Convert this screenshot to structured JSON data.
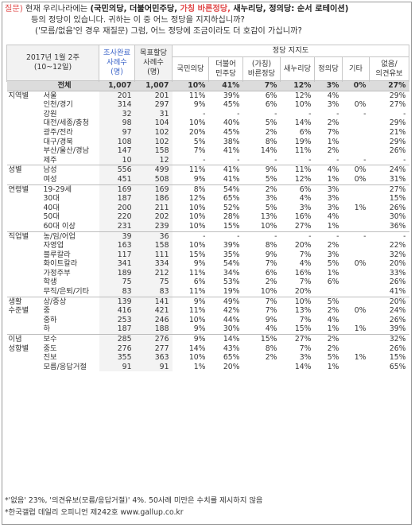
{
  "question": {
    "label": "질문)",
    "line1_a": "현재 우리나라에는",
    "line1_b": "(국민의당, 더불어민주당,",
    "line1_hl": "가칭 바른정당,",
    "line1_c": "새누리당, 정의당: 순서 로테이션)",
    "line2": "등의 정당이 있습니다. 귀하는 이 중 어느 정당을 지지하십니까?",
    "line3": "('모름/없음'인 경우 재질문) 그럼, 어느 정당에 조금이라도 더 호감이 가십니까?"
  },
  "header": {
    "period": "2017년 1월 2주",
    "period2": "(10~12일)",
    "survey_cases": [
      "조사완료",
      "사례수",
      "(명)"
    ],
    "target_cases": [
      "목표할당",
      "사례수",
      "(명)"
    ],
    "party_support": "정당 지지도",
    "parties": [
      [
        "국민의당"
      ],
      [
        "더불어",
        "민주당"
      ],
      [
        "(가칭)",
        "바른정당"
      ],
      [
        "새누리당"
      ],
      [
        "정의당"
      ],
      [
        "기타"
      ],
      [
        "없음/",
        "의견유보"
      ]
    ]
  },
  "rows": [
    {
      "g": "",
      "s": "전체",
      "cells": [
        "1,007",
        "1,007",
        "10%",
        "41%",
        "7%",
        "12%",
        "3%",
        "0%",
        "27%"
      ],
      "total": true
    },
    {
      "g": "지역별",
      "s": "서울",
      "cells": [
        "201",
        "201",
        "11%",
        "39%",
        "6%",
        "12%",
        "4%",
        "",
        "29%"
      ],
      "start": true
    },
    {
      "g": "",
      "s": "인천/경기",
      "cells": [
        "314",
        "297",
        "9%",
        "45%",
        "6%",
        "10%",
        "3%",
        "0%",
        "27%"
      ]
    },
    {
      "g": "",
      "s": "강원",
      "cells": [
        "32",
        "31",
        "-",
        "-",
        "-",
        "-",
        "-",
        "-",
        "-"
      ]
    },
    {
      "g": "",
      "s": "대전/세종/충청",
      "cells": [
        "98",
        "104",
        "10%",
        "40%",
        "5%",
        "14%",
        "2%",
        "",
        "29%"
      ]
    },
    {
      "g": "",
      "s": "광주/전라",
      "cells": [
        "97",
        "102",
        "20%",
        "45%",
        "2%",
        "6%",
        "7%",
        "",
        "21%"
      ]
    },
    {
      "g": "",
      "s": "대구/경북",
      "cells": [
        "108",
        "102",
        "5%",
        "38%",
        "8%",
        "19%",
        "1%",
        "",
        "29%"
      ]
    },
    {
      "g": "",
      "s": "부산/울산/경남",
      "cells": [
        "147",
        "158",
        "7%",
        "41%",
        "14%",
        "11%",
        "2%",
        "",
        "26%"
      ]
    },
    {
      "g": "",
      "s": "제주",
      "cells": [
        "10",
        "12",
        "-",
        "-",
        "-",
        "-",
        "-",
        "-",
        "-"
      ]
    },
    {
      "g": "성별",
      "s": "남성",
      "cells": [
        "556",
        "499",
        "11%",
        "41%",
        "9%",
        "11%",
        "4%",
        "0%",
        "24%"
      ],
      "start": true
    },
    {
      "g": "",
      "s": "여성",
      "cells": [
        "451",
        "508",
        "9%",
        "41%",
        "5%",
        "12%",
        "1%",
        "0%",
        "31%"
      ]
    },
    {
      "g": "연령별",
      "s": "19-29세",
      "cells": [
        "169",
        "169",
        "8%",
        "54%",
        "2%",
        "6%",
        "3%",
        "",
        "27%"
      ],
      "start": true
    },
    {
      "g": "",
      "s": "30대",
      "cells": [
        "187",
        "186",
        "12%",
        "65%",
        "3%",
        "4%",
        "3%",
        "",
        "15%"
      ]
    },
    {
      "g": "",
      "s": "40대",
      "cells": [
        "200",
        "211",
        "10%",
        "52%",
        "5%",
        "3%",
        "3%",
        "1%",
        "26%"
      ]
    },
    {
      "g": "",
      "s": "50대",
      "cells": [
        "220",
        "202",
        "10%",
        "28%",
        "13%",
        "16%",
        "4%",
        "",
        "30%"
      ]
    },
    {
      "g": "",
      "s": "60대 이상",
      "cells": [
        "231",
        "239",
        "10%",
        "15%",
        "10%",
        "27%",
        "1%",
        "",
        "36%"
      ]
    },
    {
      "g": "직업별",
      "s": "농/임/어업",
      "cells": [
        "39",
        "36",
        "-",
        "-",
        "-",
        "-",
        "-",
        "-",
        "-"
      ],
      "start": true
    },
    {
      "g": "",
      "s": "자영업",
      "cells": [
        "163",
        "158",
        "10%",
        "39%",
        "8%",
        "20%",
        "2%",
        "",
        "22%"
      ]
    },
    {
      "g": "",
      "s": "블루칼라",
      "cells": [
        "117",
        "111",
        "15%",
        "35%",
        "9%",
        "7%",
        "3%",
        "",
        "32%"
      ]
    },
    {
      "g": "",
      "s": "화이트칼라",
      "cells": [
        "341",
        "334",
        "9%",
        "54%",
        "7%",
        "4%",
        "5%",
        "0%",
        "20%"
      ]
    },
    {
      "g": "",
      "s": "가정주부",
      "cells": [
        "189",
        "212",
        "11%",
        "34%",
        "6%",
        "16%",
        "1%",
        "",
        "33%"
      ]
    },
    {
      "g": "",
      "s": "학생",
      "cells": [
        "75",
        "75",
        "6%",
        "53%",
        "2%",
        "7%",
        "6%",
        "",
        "26%"
      ]
    },
    {
      "g": "",
      "s": "무직/은퇴/기타",
      "cells": [
        "83",
        "83",
        "11%",
        "19%",
        "10%",
        "20%",
        "",
        "",
        "41%"
      ]
    },
    {
      "g": "생활",
      "s": "상/중상",
      "cells": [
        "139",
        "141",
        "9%",
        "49%",
        "7%",
        "10%",
        "5%",
        "",
        "20%"
      ],
      "start": true
    },
    {
      "g": "수준별",
      "s": "중",
      "cells": [
        "416",
        "421",
        "11%",
        "42%",
        "7%",
        "13%",
        "2%",
        "0%",
        "24%"
      ]
    },
    {
      "g": "",
      "s": "중하",
      "cells": [
        "253",
        "246",
        "10%",
        "44%",
        "9%",
        "7%",
        "4%",
        "",
        "26%"
      ]
    },
    {
      "g": "",
      "s": "하",
      "cells": [
        "187",
        "188",
        "9%",
        "30%",
        "4%",
        "15%",
        "1%",
        "1%",
        "39%"
      ]
    },
    {
      "g": "이념",
      "s": "보수",
      "cells": [
        "285",
        "276",
        "9%",
        "14%",
        "15%",
        "27%",
        "2%",
        "",
        "32%"
      ],
      "start": true
    },
    {
      "g": "성향별",
      "s": "중도",
      "cells": [
        "276",
        "277",
        "14%",
        "43%",
        "8%",
        "7%",
        "2%",
        "",
        "26%"
      ]
    },
    {
      "g": "",
      "s": "진보",
      "cells": [
        "355",
        "363",
        "10%",
        "65%",
        "2%",
        "3%",
        "5%",
        "1%",
        "15%"
      ]
    },
    {
      "g": "",
      "s": "모름/응답거절",
      "cells": [
        "91",
        "91",
        "1%",
        "20%",
        "",
        "14%",
        "1%",
        "",
        "65%"
      ]
    }
  ],
  "footnotes": {
    "note1": "*'없음' 23%, '의견유보(모름/응답거절)' 4%. 50사례 미만은 수치를 제시하지 않음",
    "note2": "*한국갤럽 데일리 오피니언 제242호 www.gallup.co.kr"
  },
  "colors": {
    "question_label": "#e04a4a",
    "highlight_party": "#e04a4a",
    "header_blue": "#3a63c8",
    "total_row_bg": "#dcdcdc"
  }
}
